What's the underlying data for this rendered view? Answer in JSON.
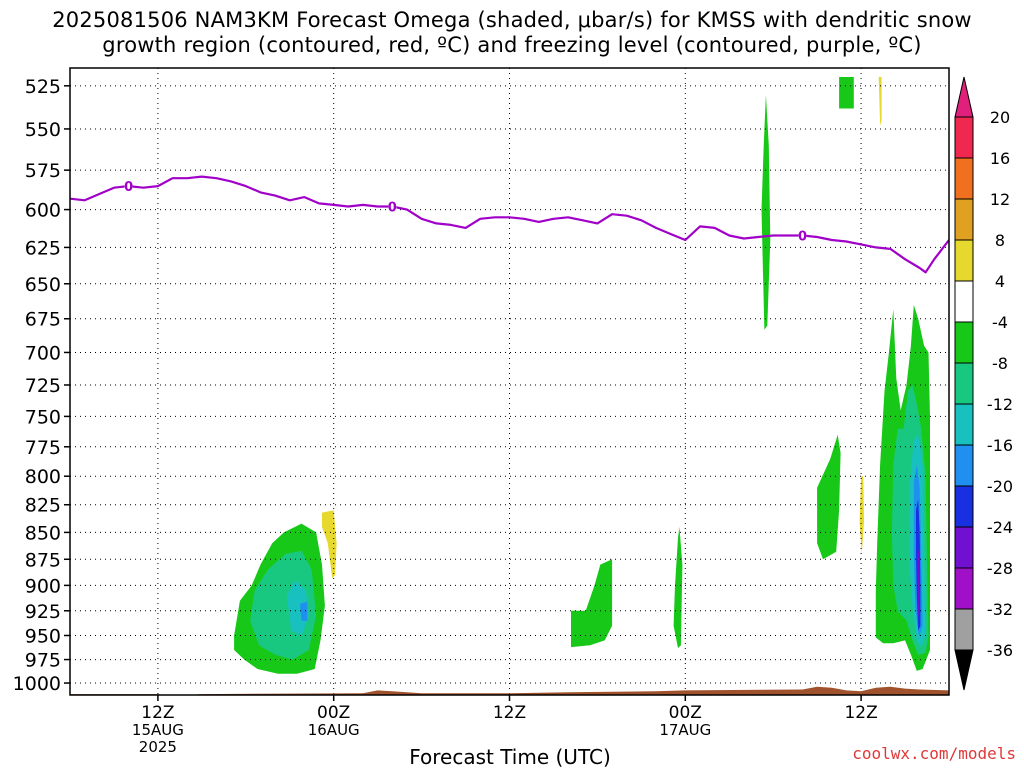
{
  "title": {
    "line1": "2025081506 NAM3KM Forecast Omega (shaded, μbar/s) for KMSS with dendritic snow",
    "line2": "growth region (contoured, red, ºC) and freezing level (contoured, purple, ºC)"
  },
  "credit": "coolwx.com/models",
  "chart_data": {
    "type": "heatmap",
    "xlabel": "Forecast Time (UTC)",
    "x_unit": "forecast hours from 2025081506",
    "xlim": [
      0,
      60
    ],
    "x_ticks": [
      {
        "hour": 6,
        "lines": [
          "12Z",
          "15AUG",
          "2025"
        ]
      },
      {
        "hour": 18,
        "lines": [
          "00Z",
          "16AUG"
        ]
      },
      {
        "hour": 30,
        "lines": [
          "12Z"
        ]
      },
      {
        "hour": 42,
        "lines": [
          "00Z",
          "17AUG"
        ]
      },
      {
        "hour": 54,
        "lines": [
          "12Z"
        ]
      }
    ],
    "y_unit": "hPa",
    "ylim": [
      1013,
      515
    ],
    "y_scale": "log",
    "y_ticks": [
      525,
      550,
      575,
      600,
      625,
      650,
      675,
      700,
      725,
      750,
      775,
      800,
      825,
      850,
      875,
      900,
      925,
      950,
      975,
      1000
    ],
    "grid": true,
    "colorbar": {
      "ticks": [
        20,
        16,
        12,
        8,
        4,
        -4,
        -8,
        -12,
        -16,
        -20,
        -24,
        -28,
        -32,
        -36
      ],
      "bins": [
        {
          "from": 16,
          "to": 20,
          "color": "#f02850"
        },
        {
          "from": 12,
          "to": 16,
          "color": "#f07020"
        },
        {
          "from": 8,
          "to": 12,
          "color": "#e0a020"
        },
        {
          "from": 4,
          "to": 8,
          "color": "#e6d82c"
        },
        {
          "from": -4,
          "to": 4,
          "color": "#ffffff"
        },
        {
          "from": -8,
          "to": -4,
          "color": "#18c818"
        },
        {
          "from": -12,
          "to": -8,
          "color": "#18c880"
        },
        {
          "from": -16,
          "to": -12,
          "color": "#18c0c0"
        },
        {
          "from": -20,
          "to": -16,
          "color": "#2090f0"
        },
        {
          "from": -24,
          "to": -20,
          "color": "#1830e0"
        },
        {
          "from": -28,
          "to": -24,
          "color": "#7010d0"
        },
        {
          "from": -32,
          "to": -28,
          "color": "#a010c8"
        },
        {
          "from": -36,
          "to": -32,
          "color": "#a0a0a0"
        }
      ],
      "top_arrow_color": "#e0207a",
      "bottom_arrow_color": "#000000"
    },
    "freezing_level": {
      "label": "0",
      "color": "#a000c8",
      "label_hours": [
        4,
        22,
        50
      ],
      "points": [
        [
          0,
          593
        ],
        [
          1,
          594
        ],
        [
          2,
          590
        ],
        [
          3,
          586
        ],
        [
          4,
          585
        ],
        [
          5,
          586
        ],
        [
          6,
          585
        ],
        [
          7,
          580
        ],
        [
          8,
          580
        ],
        [
          9,
          579
        ],
        [
          10,
          580
        ],
        [
          11,
          582
        ],
        [
          12,
          585
        ],
        [
          13,
          589
        ],
        [
          14,
          591
        ],
        [
          15,
          594
        ],
        [
          16,
          592
        ],
        [
          17,
          596
        ],
        [
          18,
          597
        ],
        [
          19,
          598
        ],
        [
          20,
          597
        ],
        [
          21,
          598
        ],
        [
          22,
          598
        ],
        [
          23,
          600
        ],
        [
          24,
          606
        ],
        [
          25,
          609
        ],
        [
          26,
          610
        ],
        [
          27,
          612
        ],
        [
          28,
          606
        ],
        [
          29,
          605
        ],
        [
          30,
          605
        ],
        [
          31,
          606
        ],
        [
          32,
          608
        ],
        [
          33,
          606
        ],
        [
          34,
          605
        ],
        [
          35,
          607
        ],
        [
          36,
          609
        ],
        [
          37,
          603
        ],
        [
          38,
          604
        ],
        [
          39,
          607
        ],
        [
          40,
          612
        ],
        [
          41,
          616
        ],
        [
          42,
          620
        ],
        [
          43,
          611
        ],
        [
          44,
          612
        ],
        [
          45,
          617
        ],
        [
          46,
          619
        ],
        [
          47,
          618
        ],
        [
          48,
          617
        ],
        [
          49,
          617
        ],
        [
          50,
          617
        ],
        [
          51,
          618
        ],
        [
          52,
          620
        ],
        [
          53,
          621
        ],
        [
          54,
          623
        ],
        [
          55,
          625
        ],
        [
          56,
          626
        ],
        [
          57,
          633
        ],
        [
          58,
          639
        ],
        [
          58.4,
          642
        ],
        [
          59,
          633
        ],
        [
          60,
          620
        ]
      ]
    },
    "omega_regions": [
      {
        "value": -6,
        "color": "#18c818",
        "points": [
          [
            11.2,
            950
          ],
          [
            11.6,
            915
          ],
          [
            12.4,
            900
          ],
          [
            13,
            880
          ],
          [
            13.8,
            860
          ],
          [
            14.6,
            850
          ],
          [
            15.8,
            842
          ],
          [
            16.8,
            850
          ],
          [
            17.2,
            880
          ],
          [
            17.4,
            920
          ],
          [
            17.1,
            955
          ],
          [
            16.7,
            985
          ],
          [
            15.5,
            990
          ],
          [
            14.2,
            990
          ],
          [
            12.8,
            985
          ],
          [
            11.9,
            975
          ],
          [
            11.2,
            965
          ]
        ]
      },
      {
        "value": -10,
        "color": "#18c880",
        "points": [
          [
            12.3,
            935
          ],
          [
            12.6,
            905
          ],
          [
            13.5,
            885
          ],
          [
            14.7,
            870
          ],
          [
            15.8,
            867
          ],
          [
            16.5,
            885
          ],
          [
            16.8,
            930
          ],
          [
            16.3,
            965
          ],
          [
            15.2,
            975
          ],
          [
            14,
            970
          ],
          [
            12.9,
            960
          ]
        ]
      },
      {
        "value": -14,
        "color": "#18c0c0",
        "points": [
          [
            14.8,
            910
          ],
          [
            15.4,
            895
          ],
          [
            16.1,
            905
          ],
          [
            16.3,
            930
          ],
          [
            15.8,
            950
          ],
          [
            15.1,
            945
          ]
        ]
      },
      {
        "value": -18,
        "color": "#2090f0",
        "points": [
          [
            15.7,
            918
          ],
          [
            16.2,
            916
          ],
          [
            16.2,
            935
          ],
          [
            15.8,
            935
          ]
        ]
      },
      {
        "value": 6,
        "color": "#e6d82c",
        "points": [
          [
            17.2,
            832
          ],
          [
            18,
            830
          ],
          [
            18.2,
            860
          ],
          [
            18.1,
            890
          ],
          [
            17.9,
            893
          ],
          [
            17.6,
            860
          ],
          [
            17.2,
            845
          ]
        ]
      },
      {
        "value": -6,
        "color": "#18c818",
        "points": [
          [
            34.2,
            925
          ],
          [
            35.2,
            925
          ],
          [
            35.8,
            900
          ],
          [
            36.2,
            880
          ],
          [
            37,
            875
          ],
          [
            37,
            940
          ],
          [
            36.5,
            955
          ],
          [
            35.5,
            960
          ],
          [
            34.2,
            962
          ]
        ]
      },
      {
        "value": -6,
        "color": "#18c818",
        "points": [
          [
            41.3,
            900
          ],
          [
            41.5,
            855
          ],
          [
            41.6,
            845
          ],
          [
            41.8,
            880
          ],
          [
            41.7,
            960
          ],
          [
            41.5,
            963
          ],
          [
            41.2,
            940
          ]
        ]
      },
      {
        "value": -6,
        "color": "#18c818",
        "points": [
          [
            47.2,
            600
          ],
          [
            47.35,
            560
          ],
          [
            47.5,
            530
          ],
          [
            47.7,
            560
          ],
          [
            47.8,
            620
          ],
          [
            47.6,
            680
          ],
          [
            47.4,
            683
          ],
          [
            47.3,
            640
          ]
        ]
      },
      {
        "value": -6,
        "color": "#18c818",
        "points": [
          [
            52.5,
            520
          ],
          [
            53.5,
            520
          ],
          [
            53.5,
            538
          ],
          [
            52.5,
            538
          ]
        ]
      },
      {
        "value": 6,
        "color": "#e6d82c",
        "points": [
          [
            55.2,
            520
          ],
          [
            55.4,
            520
          ],
          [
            55.4,
            545
          ],
          [
            55.3,
            548
          ]
        ]
      },
      {
        "value": -6,
        "color": "#18c818",
        "points": [
          [
            51,
            810
          ],
          [
            51.9,
            785
          ],
          [
            52.4,
            765
          ],
          [
            52.6,
            780
          ],
          [
            52.5,
            830
          ],
          [
            52.3,
            868
          ],
          [
            51.4,
            875
          ],
          [
            51,
            860
          ]
        ]
      },
      {
        "value": 6,
        "color": "#e6d82c",
        "points": [
          [
            54,
            800
          ],
          [
            54.15,
            800
          ],
          [
            54.2,
            840
          ],
          [
            54.05,
            870
          ],
          [
            53.9,
            840
          ]
        ]
      },
      {
        "value": -6,
        "color": "#18c818",
        "points": [
          [
            55,
            905
          ],
          [
            55.1,
            860
          ],
          [
            55.3,
            790
          ],
          [
            55.6,
            730
          ],
          [
            55.9,
            700
          ],
          [
            56.2,
            668
          ],
          [
            56.4,
            720
          ],
          [
            56.7,
            745
          ],
          [
            57.1,
            725
          ],
          [
            57.4,
            695
          ],
          [
            57.6,
            665
          ],
          [
            57.9,
            675
          ],
          [
            58.3,
            695
          ],
          [
            58.6,
            700
          ],
          [
            58.7,
            750
          ],
          [
            58.7,
            850
          ],
          [
            58.7,
            930
          ],
          [
            58.7,
            965
          ],
          [
            58.2,
            985
          ],
          [
            57.8,
            987
          ],
          [
            57.4,
            970
          ],
          [
            57,
            955
          ],
          [
            56.2,
            958
          ],
          [
            55.5,
            958
          ],
          [
            55,
            952
          ]
        ]
      },
      {
        "value": -10,
        "color": "#18c880",
        "points": [
          [
            56.1,
            850
          ],
          [
            56.2,
            790
          ],
          [
            56.5,
            760
          ],
          [
            56.9,
            760
          ],
          [
            57.2,
            730
          ],
          [
            57.5,
            725
          ],
          [
            57.8,
            740
          ],
          [
            58.1,
            760
          ],
          [
            58.4,
            800
          ],
          [
            58.5,
            880
          ],
          [
            58.6,
            950
          ],
          [
            58.4,
            968
          ],
          [
            57.9,
            970
          ],
          [
            57.5,
            955
          ],
          [
            57.1,
            935
          ],
          [
            56.5,
            925
          ],
          [
            56.2,
            900
          ]
        ]
      },
      {
        "value": -14,
        "color": "#18c0c0",
        "points": [
          [
            57.3,
            810
          ],
          [
            57.6,
            770
          ],
          [
            57.9,
            765
          ],
          [
            58.2,
            790
          ],
          [
            58.3,
            860
          ],
          [
            58.4,
            950
          ],
          [
            58.1,
            962
          ],
          [
            57.8,
            955
          ],
          [
            57.5,
            920
          ],
          [
            57.3,
            880
          ]
        ]
      },
      {
        "value": -18,
        "color": "#2090f0",
        "points": [
          [
            57.6,
            805
          ],
          [
            57.8,
            790
          ],
          [
            58,
            810
          ],
          [
            58.1,
            870
          ],
          [
            58.2,
            940
          ],
          [
            57.95,
            952
          ],
          [
            57.7,
            920
          ],
          [
            57.6,
            870
          ]
        ]
      },
      {
        "value": -22,
        "color": "#1830e0",
        "points": [
          [
            57.75,
            830
          ],
          [
            57.9,
            820
          ],
          [
            58,
            850
          ],
          [
            58.05,
            900
          ],
          [
            58.05,
            940
          ],
          [
            57.9,
            945
          ],
          [
            57.8,
            910
          ],
          [
            57.75,
            870
          ]
        ]
      },
      {
        "value": -26,
        "color": "#7010d0",
        "points": [
          [
            57.85,
            870
          ],
          [
            57.95,
            865
          ],
          [
            58,
            910
          ],
          [
            57.95,
            935
          ],
          [
            57.85,
            920
          ]
        ]
      }
    ],
    "terrain": {
      "color": "#a0522d",
      "points": [
        [
          0,
          1012
        ],
        [
          6,
          1012
        ],
        [
          7,
          1014
        ],
        [
          8,
          1013
        ],
        [
          9,
          1012
        ],
        [
          20,
          1011
        ],
        [
          21,
          1008
        ],
        [
          22,
          1009
        ],
        [
          24,
          1011
        ],
        [
          30,
          1011
        ],
        [
          34,
          1010
        ],
        [
          40,
          1009
        ],
        [
          42,
          1008
        ],
        [
          50,
          1007
        ],
        [
          51,
          1004
        ],
        [
          52,
          1005
        ],
        [
          53,
          1008
        ],
        [
          54,
          1009
        ],
        [
          55,
          1005
        ],
        [
          56,
          1004
        ],
        [
          57,
          1006
        ],
        [
          58,
          1007
        ],
        [
          60,
          1008
        ]
      ]
    }
  }
}
